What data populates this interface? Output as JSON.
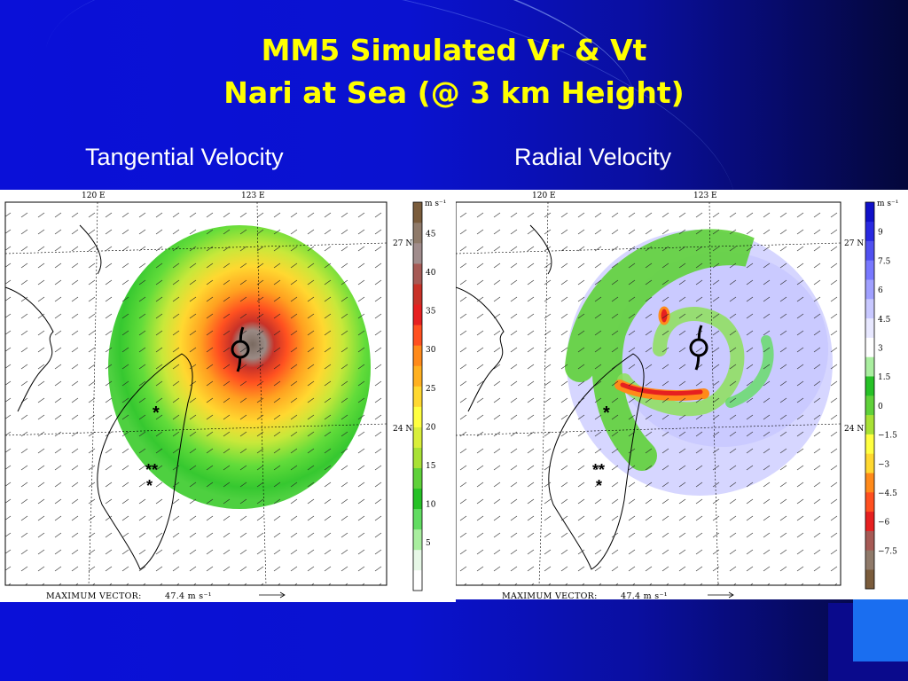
{
  "slide": {
    "title_line1": "MM5 Simulated Vr & Vt",
    "title_line2": "Nari at Sea (@ 3 km Height)"
  },
  "panels": {
    "left": {
      "label": "Tangential Velocity",
      "lon_labels": [
        "120 E",
        "123 E"
      ],
      "lat_labels": [
        "27 N",
        "24 N"
      ],
      "colorbar_unit": "m s⁻¹",
      "colorbar_ticks": [
        "45",
        "40",
        "35",
        "30",
        "25",
        "20",
        "15",
        "10",
        "5"
      ],
      "colorbar_colors": [
        "#ffffff",
        "#e6f7e6",
        "#a9ee9f",
        "#62dc62",
        "#26c126",
        "#5fd13a",
        "#a8e135",
        "#d9ee3a",
        "#ffff40",
        "#ffd830",
        "#ffb020",
        "#ff8a1a",
        "#ff5020",
        "#e62020",
        "#c83228",
        "#a65a55",
        "#a08c8c",
        "#8f7a6a",
        "#7a5c3c"
      ],
      "max_vector_label": "MAXIMUM  VECTOR:",
      "max_vector_value": "47.4  m s⁻¹",
      "typhoon_symbol": "typhoon-icon"
    },
    "right": {
      "label": "Radial Velocity",
      "lon_labels": [
        "120 E",
        "123 E"
      ],
      "lat_labels": [
        "27 N",
        "24 N"
      ],
      "colorbar_unit": "m s⁻¹",
      "colorbar_ticks": [
        "9",
        "7.5",
        "6",
        "4.5",
        "3",
        "1.5",
        "0",
        "−1.5",
        "−3",
        "−4.5",
        "−6",
        "−7.5"
      ],
      "colorbar_colors": [
        "#7a5c3c",
        "#8f7a6a",
        "#a65a55",
        "#e62020",
        "#ff5020",
        "#ff8a1a",
        "#ffd830",
        "#ffff40",
        "#a8e135",
        "#5fd13a",
        "#26c126",
        "#a9ee9f",
        "#ffffff",
        "#e8e8ff",
        "#c8c8ff",
        "#a0a0ff",
        "#7878ff",
        "#5050f0",
        "#2828e0",
        "#1010c8"
      ],
      "max_vector_label": "MAXIMUM  VECTOR:",
      "max_vector_value": "47.4  m s⁻¹",
      "typhoon_symbol": "typhoon-icon"
    }
  }
}
